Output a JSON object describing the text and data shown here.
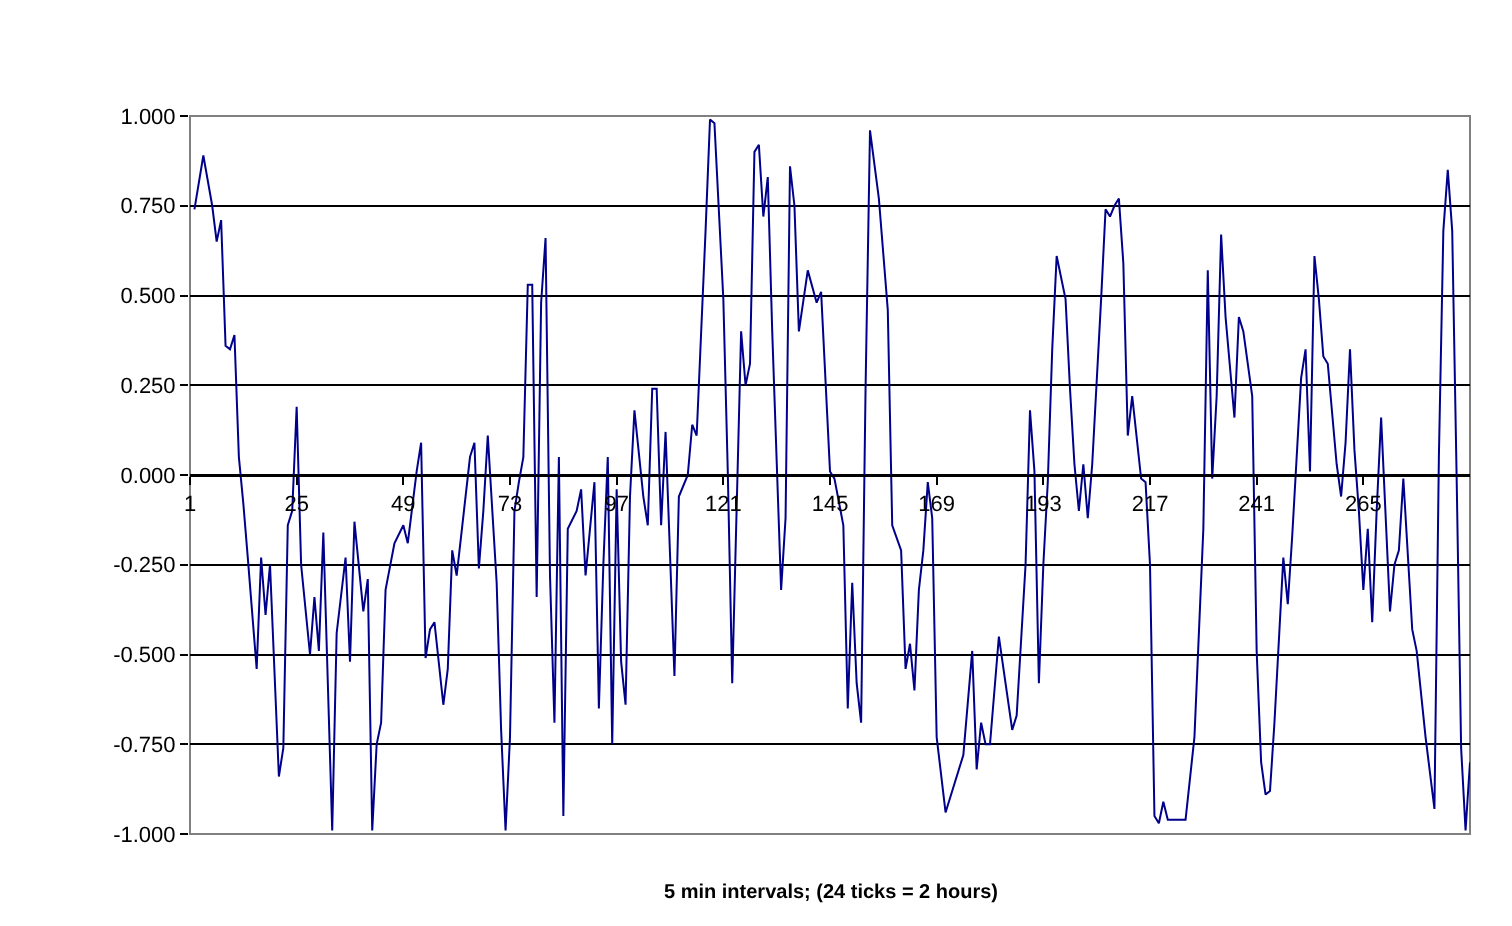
{
  "chart_data": {
    "type": "line",
    "xlabel": "5 min intervals; (24 ticks = 2 hours)",
    "x": [
      2,
      4,
      6,
      7,
      8,
      9,
      10,
      11,
      12,
      13,
      14,
      16,
      17,
      18,
      19,
      21,
      22,
      23,
      24,
      25,
      26,
      28,
      29,
      30,
      31,
      33,
      34,
      36,
      37,
      38,
      40,
      41,
      42,
      43,
      44,
      45,
      47,
      49,
      50,
      52,
      53,
      54,
      55,
      56,
      58,
      59,
      60,
      61,
      62,
      64,
      65,
      66,
      67,
      68,
      70,
      71,
      72,
      73,
      74,
      75,
      76,
      77,
      78,
      79,
      80,
      81,
      82,
      83,
      84,
      85,
      86,
      88,
      89,
      90,
      92,
      93,
      94,
      95,
      96,
      97,
      98,
      99,
      100,
      101,
      103,
      104,
      105,
      106,
      107,
      108,
      110,
      111,
      113,
      114,
      115,
      117,
      118,
      119,
      121,
      122,
      123,
      125,
      126,
      127,
      128,
      129,
      130,
      131,
      132,
      134,
      135,
      136,
      137,
      138,
      140,
      142,
      143,
      145,
      146,
      148,
      149,
      150,
      151,
      152,
      153,
      154,
      156,
      158,
      159,
      161,
      162,
      163,
      164,
      165,
      166,
      167,
      168,
      169,
      171,
      175,
      177,
      178,
      179,
      180,
      181,
      183,
      186,
      187,
      189,
      190,
      191,
      192,
      193,
      194,
      195,
      196,
      198,
      199,
      200,
      201,
      202,
      203,
      204,
      206,
      207,
      208,
      209,
      210,
      211,
      212,
      213,
      215,
      216,
      217,
      218,
      219,
      220,
      221,
      225,
      227,
      229,
      230,
      231,
      232,
      233,
      234,
      236,
      237,
      238,
      240,
      241,
      242,
      243,
      244,
      245,
      247,
      248,
      249,
      251,
      252,
      253,
      254,
      255,
      256,
      257,
      259,
      260,
      261,
      262,
      263,
      264,
      265,
      266,
      267,
      268,
      269,
      271,
      272,
      273,
      274,
      276,
      277,
      279,
      281,
      282,
      283,
      284,
      285,
      286,
      287,
      288,
      289
    ],
    "series": [
      {
        "color": "#00008b",
        "values": [
          0.74,
          0.89,
          0.75,
          0.65,
          0.71,
          0.36,
          0.35,
          0.39,
          0.05,
          -0.08,
          -0.23,
          -0.54,
          -0.23,
          -0.39,
          -0.25,
          -0.84,
          -0.76,
          -0.14,
          -0.1,
          0.19,
          -0.25,
          -0.5,
          -0.34,
          -0.49,
          -0.16,
          -0.99,
          -0.44,
          -0.23,
          -0.52,
          -0.13,
          -0.38,
          -0.29,
          -0.99,
          -0.75,
          -0.69,
          -0.32,
          -0.19,
          -0.14,
          -0.19,
          0.01,
          0.09,
          -0.51,
          -0.43,
          -0.41,
          -0.64,
          -0.54,
          -0.21,
          -0.28,
          -0.17,
          0.05,
          0.09,
          -0.26,
          -0.1,
          0.11,
          -0.3,
          -0.71,
          -0.99,
          -0.73,
          -0.1,
          -0.02,
          0.05,
          0.53,
          0.53,
          -0.34,
          0.48,
          0.66,
          -0.28,
          -0.69,
          0.05,
          -0.95,
          -0.15,
          -0.1,
          -0.04,
          -0.28,
          -0.02,
          -0.65,
          -0.25,
          0.05,
          -0.75,
          -0.04,
          -0.52,
          -0.64,
          -0.06,
          0.18,
          -0.06,
          -0.14,
          0.24,
          0.24,
          -0.14,
          0.12,
          -0.56,
          -0.06,
          0.0,
          0.14,
          0.11,
          0.68,
          0.99,
          0.98,
          0.49,
          0.01,
          -0.58,
          0.4,
          0.25,
          0.31,
          0.9,
          0.92,
          0.72,
          0.83,
          0.4,
          -0.32,
          -0.12,
          0.86,
          0.75,
          0.4,
          0.57,
          0.48,
          0.51,
          0.01,
          -0.01,
          -0.14,
          -0.65,
          -0.3,
          -0.58,
          -0.69,
          0.24,
          0.96,
          0.77,
          0.46,
          -0.14,
          -0.21,
          -0.54,
          -0.47,
          -0.6,
          -0.32,
          -0.21,
          -0.02,
          -0.12,
          -0.73,
          -0.94,
          -0.78,
          -0.49,
          -0.82,
          -0.69,
          -0.75,
          -0.75,
          -0.45,
          -0.71,
          -0.67,
          -0.25,
          0.18,
          0.01,
          -0.58,
          -0.25,
          -0.02,
          0.35,
          0.61,
          0.49,
          0.24,
          0.03,
          -0.1,
          0.03,
          -0.12,
          0.03,
          0.49,
          0.74,
          0.72,
          0.75,
          0.77,
          0.59,
          0.11,
          0.22,
          -0.01,
          -0.02,
          -0.25,
          -0.95,
          -0.97,
          -0.91,
          -0.96,
          -0.96,
          -0.73,
          -0.15,
          0.57,
          -0.01,
          0.22,
          0.67,
          0.44,
          0.16,
          0.44,
          0.4,
          0.22,
          -0.49,
          -0.8,
          -0.89,
          -0.88,
          -0.69,
          -0.23,
          -0.36,
          -0.17,
          0.27,
          0.35,
          0.01,
          0.61,
          0.49,
          0.33,
          0.31,
          0.03,
          -0.06,
          0.09,
          0.35,
          0.07,
          -0.1,
          -0.32,
          -0.15,
          -0.41,
          -0.1,
          0.16,
          -0.38,
          -0.25,
          -0.21,
          -0.01,
          -0.43,
          -0.49,
          -0.73,
          -0.93,
          0.05,
          0.68,
          0.85,
          0.68,
          -0.01,
          -0.76,
          -0.99,
          -0.8
        ]
      }
    ],
    "xlim": [
      1,
      289
    ],
    "xticks": [
      1,
      25,
      49,
      73,
      97,
      121,
      145,
      169,
      193,
      217,
      241,
      265
    ],
    "ylim": [
      -1,
      1
    ],
    "yticks": [
      {
        "value": -1,
        "label": "-1.000"
      },
      {
        "value": -0.75,
        "label": "-0.750"
      },
      {
        "value": -0.5,
        "label": "-0.500"
      },
      {
        "value": -0.25,
        "label": "-0.250"
      },
      {
        "value": 0,
        "label": "0.000"
      },
      {
        "value": 0.25,
        "label": "0.250"
      },
      {
        "value": 0.5,
        "label": "0.500"
      },
      {
        "value": 0.75,
        "label": "0.750"
      },
      {
        "value": 1,
        "label": "1.000"
      }
    ],
    "grid": "y",
    "marker": "none",
    "line_style": "solid"
  }
}
